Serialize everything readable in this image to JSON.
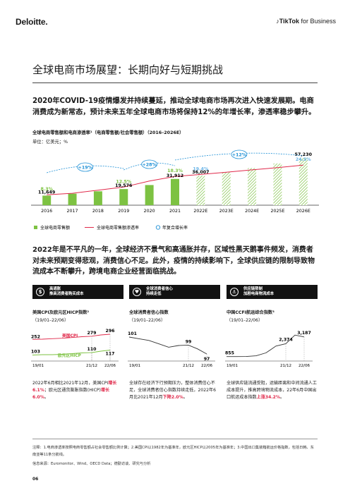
{
  "header": {
    "deloitte_logo": "Deloitte.",
    "tiktok_logo_bold": "TikTok",
    "tiktok_logo_rest": " for Business"
  },
  "page_title": "全球电商市场展望：长期向好与短期挑战",
  "intro_text": "2020年COVID-19疫情爆发并持续蔓延，推动全球电商市场再次进入快速发展期。电商消费成为新常态，预计未来五年全球电商市场将保持12%的年增长率，渗透率稳步攀升。",
  "colors": {
    "green": "#7dc242",
    "red": "#e0294a",
    "blue": "#1e90d6",
    "hatch": "#7dc242"
  },
  "chart_data": [
    {
      "type": "bar",
      "title": "全球电商零售额和电商渗透率¹（电商零售额/社会零售额）（2016–2026E）",
      "unit": "单位：亿美元；%",
      "categories": [
        "2016",
        "2017",
        "2018",
        "2019",
        "2020",
        "2021",
        "2022E",
        "2023E",
        "2024E",
        "2025E",
        "2026E"
      ],
      "series": [
        {
          "name": "全球电商零售额",
          "values": [
            11649,
            14000,
            16900,
            19576,
            24500,
            31912,
            36007,
            40300,
            45100,
            50700,
            57230
          ]
        },
        {
          "name": "全球电商零售额渗透率",
          "values": [
            8.3,
            9.1,
            10.8,
            12.5,
            15.8,
            18.3,
            19.4,
            20.6,
            21.9,
            23.1,
            24.5
          ]
        }
      ],
      "bar_labels": {
        "0": "11,649",
        "3": "19,576",
        "5": "31,912",
        "6": "36,007",
        "10": "57,230"
      },
      "line_labels": {
        "0": "8.3%",
        "3": "12.5%",
        "5": "18.3%",
        "6": "19.4%",
        "10": "24.5%"
      },
      "growth": [
        {
          "label": "+19%",
          "from": 0,
          "to": 3
        },
        {
          "label": "+28%",
          "from": 3,
          "to": 5
        },
        {
          "label": "+12%",
          "from": 5,
          "to": 10
        }
      ],
      "legend": [
        "全球电商零售额",
        "全球电商零售额渗透率",
        "年复合增长率"
      ]
    },
    {
      "type": "line",
      "title": "美国CPI及欧元区HICP指数²",
      "subtitle": "（19/01–22/06）",
      "x_labels": [
        "19/01",
        "21/12",
        "22/06"
      ],
      "series": [
        {
          "name": "美国CPI",
          "values": [
            252,
            279,
            296
          ]
        },
        {
          "name": "欧元区HICP",
          "values": [
            103,
            110,
            117
          ]
        }
      ]
    },
    {
      "type": "line",
      "title": "全球消费者信心指数",
      "subtitle": "（19/01–22/06）",
      "x_labels": [
        "19/01",
        "21/12",
        "22/06"
      ],
      "series": [
        {
          "name": "全球消费者信心指数",
          "values": [
            101,
            99,
            97
          ]
        }
      ]
    },
    {
      "type": "line",
      "title": "中国CCFI航运综合指数³",
      "subtitle": "（19/01–22/06）",
      "x_labels": [
        "19/01",
        "21/12",
        "22/06"
      ],
      "series": [
        {
          "name": "中国CCFI航运综合指数",
          "values": [
            855,
            2374,
            3187
          ]
        }
      ]
    }
  ],
  "para2": "2022年是不平凡的一年，全球经济不景气和高通胀并存，区域性黑天鹅事件频发，消费者对未来预期变得悲观，消费信心不足。此外，疫情的持续影响下，全球供应链的限制导致物流成本不断攀升，跨境电商企业经营面临挑战。",
  "panels": [
    {
      "header": [
        "高通胀",
        "推高消费者购买成本"
      ],
      "icon": "$",
      "note_pre": "2022年6月相比2021年12月，美国CPI",
      "note_red1": "增长6.1%",
      "note_mid": "；欧元区通货膨胀指数(HICP)",
      "note_red2": "增长6.0%",
      "note_post": "。"
    },
    {
      "header": [
        "全球消费者信心",
        "持续走低"
      ],
      "icon": "♥",
      "note_pre": "全球存在经济下行预期压力，整体消费信心不足，全球消费者信心指数持续走低，2022年6月比2021年12月",
      "note_red1": "下降2.0%",
      "note_mid": "",
      "note_red2": "",
      "note_post": "。"
    },
    {
      "header": [
        "供应链限制",
        "加剧电商物流成本"
      ],
      "icon": "⚓",
      "note_pre": "全球供应链流通受阻，运输距离和中间流通人工成本提升，推高跨境物流成本，22年6月中国出口航运成本指数",
      "note_red1": "上涨34.2%",
      "note_mid": "",
      "note_red2": "",
      "note_post": "。"
    }
  ],
  "footnotes": [
    "注释：1.电商渗透率按照电商零售额占社会零售额比例计算；2.美国CPI以1982年为基准年，欧元区HICP以2005年为基准年；3.中国出口集装箱航运价格指数，包括日韩、东南亚等11条分航线。",
    "信息来源：Euromonitor、Wind、OECD Data；德勤访谈、研究与分析"
  ],
  "page_number": "06"
}
